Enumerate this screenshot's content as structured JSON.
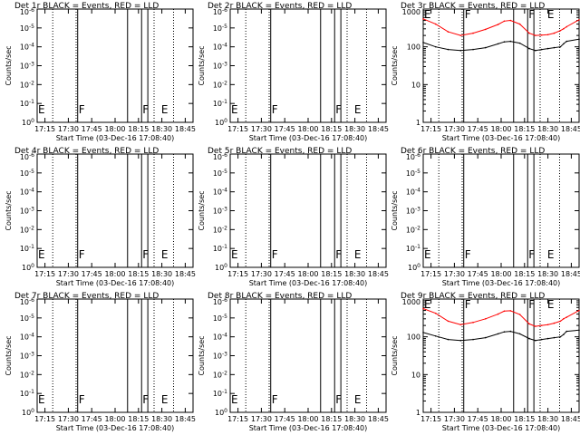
{
  "start_label": "Start Time (03-Dec-16 17:08:40)",
  "ylabel": "Counts/sec",
  "colors": {
    "events": "#000000",
    "lld": "#ff0000",
    "axes": "#000000"
  },
  "x_ticks": [
    "17:15",
    "17:30",
    "17:45",
    "18:00",
    "18:15",
    "18:30",
    "18:45"
  ],
  "chart_data": [
    {
      "type": "line",
      "title": "Det 1r BLACK = Events, RED = LLD",
      "y_scale": "log",
      "y_ticks": [
        "10^0",
        "10^-1",
        "10^-2",
        "10^-3",
        "10^-4",
        "10^-5",
        "10^-6"
      ],
      "markers": [
        "E",
        "F",
        "F",
        "E"
      ],
      "series": []
    },
    {
      "type": "line",
      "title": "Det 2r BLACK = Events, RED = LLD",
      "y_scale": "log",
      "y_ticks": [
        "10^0",
        "10^-1",
        "10^-2",
        "10^-3",
        "10^-4",
        "10^-5",
        "10^-6"
      ],
      "markers": [
        "E",
        "F",
        "F",
        "E"
      ],
      "series": []
    },
    {
      "type": "line",
      "title": "Det 3r BLACK = Events, RED = LLD",
      "y_scale": "log",
      "y_ticks": [
        "1",
        "10",
        "100",
        "1000"
      ],
      "markers": [
        "E",
        "F",
        "F",
        "E"
      ],
      "x_minutes": [
        0,
        8,
        16,
        24,
        32,
        40,
        48,
        52,
        56,
        62,
        68,
        72,
        76,
        80,
        84,
        88,
        90,
        92,
        100
      ],
      "series": [
        {
          "name": "LLD",
          "color": "red",
          "values": [
            550,
            400,
            250,
            200,
            230,
            290,
            390,
            480,
            500,
            400,
            230,
            200,
            205,
            210,
            230,
            270,
            300,
            340,
            520
          ]
        },
        {
          "name": "Events",
          "color": "black",
          "values": [
            130,
            100,
            85,
            80,
            85,
            95,
            120,
            135,
            140,
            125,
            90,
            80,
            85,
            90,
            95,
            100,
            120,
            140,
            160
          ]
        }
      ]
    },
    {
      "type": "line",
      "title": "Det 4r BLACK = Events, RED = LLD",
      "y_scale": "log",
      "y_ticks": [
        "10^0",
        "10^-1",
        "10^-2",
        "10^-3",
        "10^-4",
        "10^-5",
        "10^-6"
      ],
      "markers": [
        "E",
        "F",
        "F",
        "E"
      ],
      "series": []
    },
    {
      "type": "line",
      "title": "Det 5r BLACK = Events, RED = LLD",
      "y_scale": "log",
      "y_ticks": [
        "10^0",
        "10^-1",
        "10^-2",
        "10^-3",
        "10^-4",
        "10^-5",
        "10^-6"
      ],
      "markers": [
        "E",
        "F",
        "F",
        "E"
      ],
      "series": []
    },
    {
      "type": "line",
      "title": "Det 6r BLACK = Events, RED = LLD",
      "y_scale": "log",
      "y_ticks": [
        "10^0",
        "10^-1",
        "10^-2",
        "10^-3",
        "10^-4",
        "10^-5",
        "10^-6"
      ],
      "markers": [
        "E",
        "F",
        "F",
        "E"
      ],
      "series": []
    },
    {
      "type": "line",
      "title": "Det 7r BLACK = Events, RED = LLD",
      "y_scale": "log",
      "y_ticks": [
        "10^0",
        "10^-1",
        "10^-2",
        "10^-3",
        "10^-4",
        "10^-5",
        "10^-6"
      ],
      "markers": [
        "E",
        "F",
        "F",
        "E"
      ],
      "series": []
    },
    {
      "type": "line",
      "title": "Det 8r BLACK = Events, RED = LLD",
      "y_scale": "log",
      "y_ticks": [
        "10^0",
        "10^-1",
        "10^-2",
        "10^-3",
        "10^-4",
        "10^-5",
        "10^-6"
      ],
      "markers": [
        "E",
        "F",
        "F",
        "E"
      ],
      "series": []
    },
    {
      "type": "line",
      "title": "Det 9r BLACK = Events, RED = LLD",
      "y_scale": "log",
      "y_ticks": [
        "1",
        "10",
        "100",
        "1000"
      ],
      "markers": [
        "E",
        "F",
        "F",
        "E"
      ],
      "x_minutes": [
        0,
        8,
        16,
        24,
        32,
        40,
        48,
        52,
        56,
        62,
        68,
        72,
        76,
        80,
        84,
        88,
        90,
        92,
        100
      ],
      "series": [
        {
          "name": "LLD",
          "color": "red",
          "values": [
            560,
            420,
            260,
            210,
            240,
            300,
            400,
            480,
            490,
            390,
            220,
            190,
            200,
            210,
            230,
            260,
            300,
            330,
            500
          ]
        },
        {
          "name": "Events",
          "color": "black",
          "values": [
            130,
            105,
            85,
            80,
            85,
            95,
            120,
            135,
            140,
            120,
            90,
            80,
            85,
            90,
            95,
            100,
            115,
            140,
            150
          ]
        }
      ]
    }
  ]
}
